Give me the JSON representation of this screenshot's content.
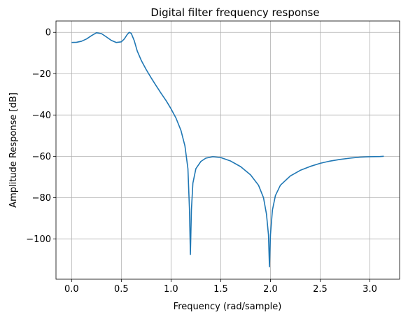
{
  "chart_data": {
    "type": "line",
    "title": "Digital filter frequency response",
    "xlabel": "Frequency (rad/sample)",
    "ylabel": "Amplitude Response [dB]",
    "xlim": [
      -0.157,
      3.299
    ],
    "ylim": [
      -119.5,
      5.5
    ],
    "xticks": [
      0.0,
      0.5,
      1.0,
      1.5,
      2.0,
      2.5,
      3.0
    ],
    "xtick_labels": [
      "0.0",
      "0.5",
      "1.0",
      "1.5",
      "2.0",
      "2.5",
      "3.0"
    ],
    "yticks": [
      0,
      -20,
      -40,
      -60,
      -80,
      -100
    ],
    "ytick_labels": [
      "0",
      "−20",
      "−40",
      "−60",
      "−80",
      "−100"
    ],
    "grid": true,
    "series": [
      {
        "color": "#1f77b4",
        "points": [
          [
            0.0,
            -4.9
          ],
          [
            0.05,
            -4.8
          ],
          [
            0.1,
            -4.3
          ],
          [
            0.15,
            -3.2
          ],
          [
            0.2,
            -1.6
          ],
          [
            0.25,
            -0.2
          ],
          [
            0.3,
            -0.6
          ],
          [
            0.35,
            -2.2
          ],
          [
            0.4,
            -3.9
          ],
          [
            0.45,
            -4.9
          ],
          [
            0.5,
            -4.6
          ],
          [
            0.53,
            -3.2
          ],
          [
            0.56,
            -1.0
          ],
          [
            0.58,
            0.0
          ],
          [
            0.6,
            -0.5
          ],
          [
            0.63,
            -4.0
          ],
          [
            0.66,
            -9.0
          ],
          [
            0.7,
            -13.5
          ],
          [
            0.75,
            -18.0
          ],
          [
            0.8,
            -22.0
          ],
          [
            0.85,
            -25.8
          ],
          [
            0.9,
            -29.5
          ],
          [
            0.95,
            -33.0
          ],
          [
            1.0,
            -37.0
          ],
          [
            1.05,
            -41.5
          ],
          [
            1.1,
            -47.5
          ],
          [
            1.14,
            -55.0
          ],
          [
            1.17,
            -66.0
          ],
          [
            1.185,
            -85.0
          ],
          [
            1.195,
            -107.5
          ],
          [
            1.205,
            -86.0
          ],
          [
            1.22,
            -73.0
          ],
          [
            1.25,
            -66.0
          ],
          [
            1.3,
            -62.5
          ],
          [
            1.35,
            -60.9
          ],
          [
            1.42,
            -60.2
          ],
          [
            1.5,
            -60.6
          ],
          [
            1.6,
            -62.3
          ],
          [
            1.7,
            -65.0
          ],
          [
            1.8,
            -69.0
          ],
          [
            1.88,
            -74.0
          ],
          [
            1.93,
            -80.0
          ],
          [
            1.96,
            -88.0
          ],
          [
            1.98,
            -98.0
          ],
          [
            1.99,
            -113.5
          ],
          [
            2.0,
            -98.0
          ],
          [
            2.02,
            -86.0
          ],
          [
            2.05,
            -79.0
          ],
          [
            2.1,
            -74.0
          ],
          [
            2.2,
            -69.5
          ],
          [
            2.3,
            -66.8
          ],
          [
            2.4,
            -64.9
          ],
          [
            2.5,
            -63.4
          ],
          [
            2.6,
            -62.3
          ],
          [
            2.7,
            -61.5
          ],
          [
            2.8,
            -60.9
          ],
          [
            2.9,
            -60.4
          ],
          [
            3.0,
            -60.2
          ],
          [
            3.1,
            -60.1
          ],
          [
            3.14,
            -60.0
          ]
        ]
      }
    ]
  }
}
